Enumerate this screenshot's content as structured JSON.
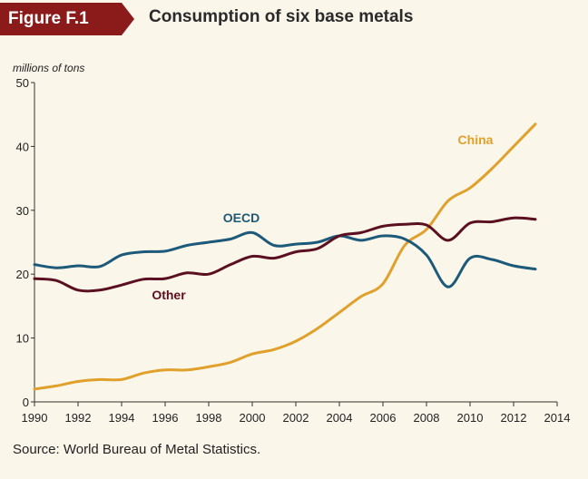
{
  "figure": {
    "label": "Figure F.1",
    "title": "Consumption of six base metals",
    "badge_color": "#8b1a1a"
  },
  "source": "Source: World Bureau of Metal Statistics.",
  "chart_data": {
    "type": "line",
    "title": "Consumption of six base metals",
    "ylabel": "millions of tons",
    "xlabel": "",
    "xlim": [
      1990,
      2014
    ],
    "ylim": [
      0,
      50
    ],
    "x_ticks": [
      1990,
      1992,
      1994,
      1996,
      1998,
      2000,
      2002,
      2004,
      2006,
      2008,
      2010,
      2012,
      2014
    ],
    "y_ticks": [
      0,
      10,
      20,
      30,
      40,
      50
    ],
    "grid": false,
    "legend": "inline labels",
    "series": [
      {
        "name": "China",
        "color": "#e0a02c",
        "x": [
          1990,
          1991,
          1992,
          1993,
          1994,
          1995,
          1996,
          1997,
          1998,
          1999,
          2000,
          2001,
          2002,
          2003,
          2004,
          2005,
          2006,
          2007,
          2008,
          2009,
          2010,
          2011,
          2012,
          2013
        ],
        "values": [
          2.0,
          2.5,
          3.2,
          3.5,
          3.5,
          4.5,
          5.0,
          5.0,
          5.5,
          6.2,
          7.5,
          8.2,
          9.5,
          11.5,
          14.0,
          16.5,
          18.5,
          24.5,
          27.0,
          31.5,
          33.5,
          36.5,
          40.0,
          43.5
        ]
      },
      {
        "name": "OECD",
        "color": "#1d5a7a",
        "x": [
          1990,
          1991,
          1992,
          1993,
          1994,
          1995,
          1996,
          1997,
          1998,
          1999,
          2000,
          2001,
          2002,
          2003,
          2004,
          2005,
          2006,
          2007,
          2008,
          2009,
          2010,
          2011,
          2012,
          2013
        ],
        "values": [
          21.5,
          21.0,
          21.3,
          21.2,
          23.0,
          23.5,
          23.6,
          24.5,
          25.0,
          25.5,
          26.5,
          24.5,
          24.7,
          25.0,
          26.0,
          25.3,
          26.0,
          25.5,
          23.0,
          18.0,
          22.5,
          22.3,
          21.3,
          20.8
        ]
      },
      {
        "name": "Other",
        "color": "#5a1020",
        "x": [
          1990,
          1991,
          1992,
          1993,
          1994,
          1995,
          1996,
          1997,
          1998,
          1999,
          2000,
          2001,
          2002,
          2003,
          2004,
          2005,
          2006,
          2007,
          2008,
          2009,
          2010,
          2011,
          2012,
          2013
        ],
        "values": [
          19.3,
          19.0,
          17.5,
          17.5,
          18.3,
          19.2,
          19.3,
          20.2,
          20.0,
          21.5,
          22.8,
          22.5,
          23.5,
          24.0,
          26.0,
          26.5,
          27.5,
          27.8,
          27.7,
          25.3,
          28.0,
          28.2,
          28.8,
          28.6
        ]
      }
    ],
    "annotations": [
      {
        "text": "China",
        "series": "China"
      },
      {
        "text": "OECD",
        "series": "OECD"
      },
      {
        "text": "Other",
        "series": "Other"
      }
    ]
  }
}
